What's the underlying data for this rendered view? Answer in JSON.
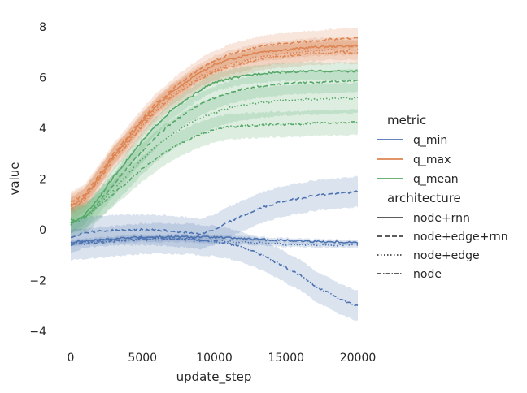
{
  "chart_data": {
    "type": "line",
    "title": "",
    "xlabel": "update_step",
    "ylabel": "value",
    "xlim": [
      0,
      20000
    ],
    "ylim": [
      -4.4,
      8.3
    ],
    "xticks": [
      0,
      5000,
      10000,
      15000,
      20000
    ],
    "yticks": [
      -4,
      -2,
      0,
      2,
      4,
      6,
      8
    ],
    "xtick_labels": [
      "0",
      "5000",
      "10000",
      "15000",
      "20000"
    ],
    "ytick_labels": [
      "−4",
      "−2",
      "0",
      "2",
      "4",
      "6",
      "8"
    ],
    "grid": false,
    "legend": {
      "placement": "right",
      "metric_title": "metric",
      "architecture_title": "architecture",
      "metric_entries": [
        {
          "name": "q_min",
          "color": "#4c72b0"
        },
        {
          "name": "q_max",
          "color": "#dd8452"
        },
        {
          "name": "q_mean",
          "color": "#55a868"
        }
      ],
      "architecture_entries": [
        {
          "name": "node+rnn",
          "dash": "solid"
        },
        {
          "name": "node+edge+rnn",
          "dash": "dashed"
        },
        {
          "name": "node+edge",
          "dash": "dotted"
        },
        {
          "name": "node",
          "dash": "dashdot"
        }
      ]
    },
    "x": [
      0,
      1000,
      2000,
      3000,
      4000,
      5000,
      6000,
      7000,
      8000,
      9000,
      10000,
      11000,
      12000,
      13000,
      14000,
      15000,
      16000,
      17000,
      18000,
      19000,
      20000
    ],
    "series": [
      {
        "name": "q_max",
        "architecture": "node+rnn",
        "color": "#dd8452",
        "dash": "solid",
        "band": 0.35,
        "values": [
          0.9,
          1.3,
          2.1,
          2.9,
          3.6,
          4.3,
          4.9,
          5.4,
          5.8,
          6.2,
          6.5,
          6.7,
          6.85,
          7.0,
          7.05,
          7.1,
          7.15,
          7.2,
          7.22,
          7.24,
          7.25
        ]
      },
      {
        "name": "q_max",
        "architecture": "node+edge+rnn",
        "color": "#dd8452",
        "dash": "dashed",
        "band": 0.4,
        "values": [
          1.1,
          1.4,
          2.2,
          3.0,
          3.7,
          4.4,
          5.0,
          5.5,
          5.95,
          6.35,
          6.65,
          6.9,
          7.05,
          7.2,
          7.3,
          7.35,
          7.4,
          7.45,
          7.5,
          7.52,
          7.55
        ]
      },
      {
        "name": "q_max",
        "architecture": "node+edge",
        "color": "#dd8452",
        "dash": "dotted",
        "band": 0.4,
        "values": [
          1.0,
          1.3,
          2.1,
          2.9,
          3.5,
          4.2,
          4.8,
          5.3,
          5.7,
          6.05,
          6.3,
          6.5,
          6.65,
          6.8,
          6.9,
          6.95,
          7.0,
          7.05,
          7.08,
          7.1,
          7.1
        ]
      },
      {
        "name": "q_max",
        "architecture": "node",
        "color": "#dd8452",
        "dash": "dashdot",
        "band": 0.45,
        "values": [
          0.8,
          1.2,
          2.0,
          2.8,
          3.4,
          4.1,
          4.7,
          5.2,
          5.6,
          5.95,
          6.2,
          6.4,
          6.55,
          6.7,
          6.8,
          6.85,
          6.9,
          6.95,
          6.98,
          7.0,
          7.0
        ]
      },
      {
        "name": "q_mean",
        "architecture": "node+rnn",
        "color": "#55a868",
        "dash": "solid",
        "band": 0.35,
        "values": [
          0.2,
          0.6,
          1.3,
          2.1,
          2.8,
          3.5,
          4.15,
          4.7,
          5.1,
          5.5,
          5.8,
          5.95,
          6.05,
          6.15,
          6.2,
          6.22,
          6.24,
          6.25,
          6.25,
          6.25,
          6.25
        ]
      },
      {
        "name": "q_mean",
        "architecture": "node+edge+rnn",
        "color": "#55a868",
        "dash": "dashed",
        "band": 0.45,
        "values": [
          0.3,
          0.5,
          1.1,
          1.8,
          2.5,
          3.1,
          3.7,
          4.2,
          4.6,
          4.95,
          5.2,
          5.4,
          5.55,
          5.65,
          5.7,
          5.75,
          5.8,
          5.82,
          5.85,
          5.87,
          5.9
        ]
      },
      {
        "name": "q_mean",
        "architecture": "node+edge",
        "color": "#55a868",
        "dash": "dotted",
        "band": 0.6,
        "values": [
          0.25,
          0.45,
          1.0,
          1.6,
          2.2,
          2.8,
          3.3,
          3.75,
          4.1,
          4.4,
          4.6,
          4.8,
          4.9,
          5.0,
          5.05,
          5.1,
          5.12,
          5.15,
          5.15,
          5.18,
          5.2
        ]
      },
      {
        "name": "q_mean",
        "architecture": "node",
        "color": "#55a868",
        "dash": "dashdot",
        "band": 0.5,
        "values": [
          0.4,
          0.5,
          0.95,
          1.45,
          1.9,
          2.4,
          2.85,
          3.2,
          3.5,
          3.75,
          3.95,
          4.05,
          4.1,
          4.12,
          4.15,
          4.15,
          4.17,
          4.2,
          4.2,
          4.22,
          4.25
        ]
      },
      {
        "name": "q_min",
        "architecture": "node+rnn",
        "color": "#4c72b0",
        "dash": "solid",
        "band": 0.1,
        "values": [
          -0.5,
          -0.45,
          -0.4,
          -0.35,
          -0.3,
          -0.3,
          -0.28,
          -0.28,
          -0.28,
          -0.28,
          -0.3,
          -0.32,
          -0.35,
          -0.38,
          -0.4,
          -0.42,
          -0.44,
          -0.46,
          -0.47,
          -0.48,
          -0.5
        ]
      },
      {
        "name": "q_min",
        "architecture": "node+edge+rnn",
        "color": "#4c72b0",
        "dash": "dashed",
        "band": 0.6,
        "values": [
          -0.3,
          -0.1,
          -0.05,
          -0.02,
          0.0,
          0.0,
          -0.02,
          -0.05,
          -0.1,
          -0.15,
          0.0,
          0.3,
          0.55,
          0.8,
          1.0,
          1.15,
          1.25,
          1.35,
          1.4,
          1.45,
          1.5
        ]
      },
      {
        "name": "q_min",
        "architecture": "node+edge",
        "color": "#4c72b0",
        "dash": "dotted",
        "band": 0.1,
        "values": [
          -0.55,
          -0.5,
          -0.45,
          -0.42,
          -0.4,
          -0.38,
          -0.38,
          -0.38,
          -0.4,
          -0.42,
          -0.45,
          -0.47,
          -0.5,
          -0.52,
          -0.55,
          -0.57,
          -0.58,
          -0.6,
          -0.6,
          -0.6,
          -0.6
        ]
      },
      {
        "name": "q_min",
        "architecture": "node",
        "color": "#4c72b0",
        "dash": "dashdot",
        "band": 0.6,
        "values": [
          -0.6,
          -0.55,
          -0.5,
          -0.45,
          -0.4,
          -0.35,
          -0.35,
          -0.35,
          -0.35,
          -0.4,
          -0.45,
          -0.55,
          -0.7,
          -0.9,
          -1.2,
          -1.5,
          -1.8,
          -2.2,
          -2.5,
          -2.8,
          -3.0
        ]
      }
    ]
  }
}
